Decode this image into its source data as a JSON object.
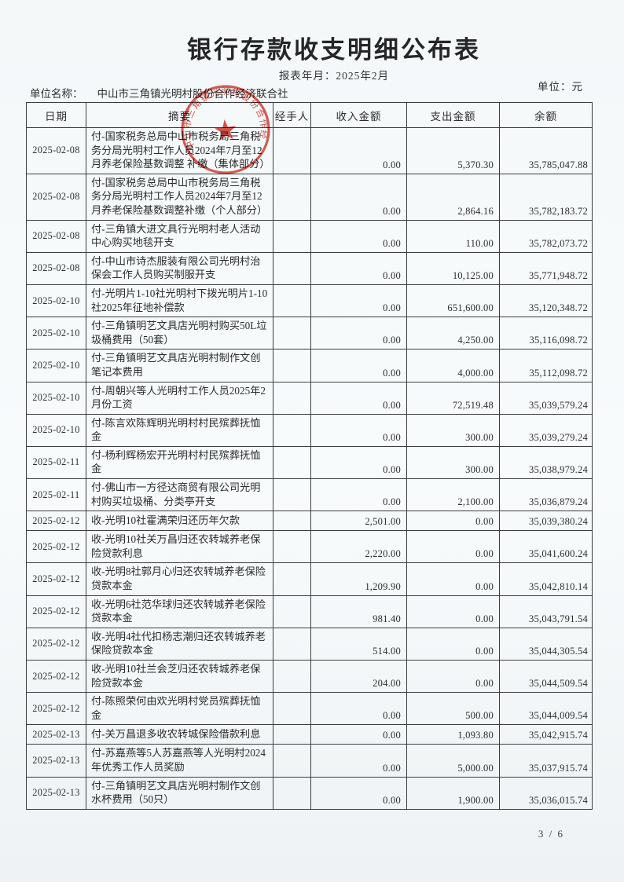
{
  "page": {
    "title": "银行存款收支明细公布表",
    "report_period": "报表年月：2025年2月",
    "unit_name_label": "单位名称：",
    "unit_name": "中山市三角镇光明村股份合作经济联合社",
    "unit_label": "单位：元",
    "page_number": "3 / 6"
  },
  "stamp": {
    "text": "中山市三角镇光明村股份合作经济联合社",
    "color": "#cf372c",
    "icon": "star"
  },
  "colors": {
    "seal_red": "#cf372c",
    "table_line": "#3d3d3d",
    "ink": "#303030",
    "paper": "#f6f9fa"
  },
  "table": {
    "headers": [
      "日期",
      "摘要",
      "经手人",
      "收入金额",
      "支出金额",
      "余额"
    ],
    "rows": [
      {
        "date": "2025-02-08",
        "summary": "付-国家税务总局中山市税务局三角税务分局光明村工作人员2024年7月至12月养老保险基数调整 补缴（集体部分）",
        "handler": "",
        "income": "0.00",
        "expense": "5,370.30",
        "balance": "35,785,047.88"
      },
      {
        "date": "2025-02-08",
        "summary": "付-国家税务总局中山市税务局三角税务分局光明村工作人员2024年7月至12月养老保险基数调整补缴（个人部分）",
        "handler": "",
        "income": "0.00",
        "expense": "2,864.16",
        "balance": "35,782,183.72"
      },
      {
        "date": "2025-02-08",
        "summary": "付-三角镇大进文具行光明村老人活动中心购买地毯开支",
        "handler": "",
        "income": "0.00",
        "expense": "110.00",
        "balance": "35,782,073.72"
      },
      {
        "date": "2025-02-08",
        "summary": "付-中山市诗杰服装有限公司光明村治保会工作人员购买制服开支",
        "handler": "",
        "income": "0.00",
        "expense": "10,125.00",
        "balance": "35,771,948.72"
      },
      {
        "date": "2025-02-10",
        "summary": "付-光明片1-10社光明村下拨光明片1-10社2025年征地补偿款",
        "handler": "",
        "income": "0.00",
        "expense": "651,600.00",
        "balance": "35,120,348.72"
      },
      {
        "date": "2025-02-10",
        "summary": "付-三角镇明艺文具店光明村购买50L垃圾桶费用（50套）",
        "handler": "",
        "income": "0.00",
        "expense": "4,250.00",
        "balance": "35,116,098.72"
      },
      {
        "date": "2025-02-10",
        "summary": "付-三角镇明艺文具店光明村制作文创笔记本费用",
        "handler": "",
        "income": "0.00",
        "expense": "4,000.00",
        "balance": "35,112,098.72"
      },
      {
        "date": "2025-02-10",
        "summary": "付-周朝兴等人光明村工作人员2025年2月份工资",
        "handler": "",
        "income": "0.00",
        "expense": "72,519.48",
        "balance": "35,039,579.24"
      },
      {
        "date": "2025-02-10",
        "summary": "付-陈言欢陈辉明光明村村民殡葬抚恤金",
        "handler": "",
        "income": "0.00",
        "expense": "300.00",
        "balance": "35,039,279.24"
      },
      {
        "date": "2025-02-11",
        "summary": "付-杨利辉杨宏开光明村村民殡葬抚恤金",
        "handler": "",
        "income": "0.00",
        "expense": "300.00",
        "balance": "35,038,979.24"
      },
      {
        "date": "2025-02-11",
        "summary": "付-佛山市一方径达商贸有限公司光明村购买垃圾桶、分类亭开支",
        "handler": "",
        "income": "0.00",
        "expense": "2,100.00",
        "balance": "35,036,879.24"
      },
      {
        "date": "2025-02-12",
        "summary": "收-光明10社霍满荣归还历年欠款",
        "handler": "",
        "income": "2,501.00",
        "expense": "0.00",
        "balance": "35,039,380.24"
      },
      {
        "date": "2025-02-12",
        "summary": "收-光明10社关万昌归还农转城养老保险贷款利息",
        "handler": "",
        "income": "2,220.00",
        "expense": "0.00",
        "balance": "35,041,600.24"
      },
      {
        "date": "2025-02-12",
        "summary": "收-光明8社郭月心归还农转城养老保险贷款本金",
        "handler": "",
        "income": "1,209.90",
        "expense": "0.00",
        "balance": "35,042,810.14"
      },
      {
        "date": "2025-02-12",
        "summary": "收-光明6社范华球归还农转城养老保险贷款本金",
        "handler": "",
        "income": "981.40",
        "expense": "0.00",
        "balance": "35,043,791.54"
      },
      {
        "date": "2025-02-12",
        "summary": "收-光明4社代扣杨志潮归还农转城养老保险贷款本金",
        "handler": "",
        "income": "514.00",
        "expense": "0.00",
        "balance": "35,044,305.54"
      },
      {
        "date": "2025-02-12",
        "summary": "收-光明10社兰会芝归还农转城养老保险贷款本金",
        "handler": "",
        "income": "204.00",
        "expense": "0.00",
        "balance": "35,044,509.54"
      },
      {
        "date": "2025-02-12",
        "summary": "付-陈照荣何由欢光明村党员殡葬抚恤金",
        "handler": "",
        "income": "0.00",
        "expense": "500.00",
        "balance": "35,044,009.54"
      },
      {
        "date": "2025-02-13",
        "summary": "付-关万昌退多收农转城保险借款利息",
        "handler": "",
        "income": "0.00",
        "expense": "1,093.80",
        "balance": "35,042,915.74"
      },
      {
        "date": "2025-02-13",
        "summary": "付-苏嘉燕等5人苏嘉燕等人光明村2024年优秀工作人员奖励",
        "handler": "",
        "income": "0.00",
        "expense": "5,000.00",
        "balance": "35,037,915.74"
      },
      {
        "date": "2025-02-13",
        "summary": "付-三角镇明艺文具店光明村制作文创水杯费用（50只）",
        "handler": "",
        "income": "0.00",
        "expense": "1,900.00",
        "balance": "35,036,015.74"
      }
    ]
  }
}
